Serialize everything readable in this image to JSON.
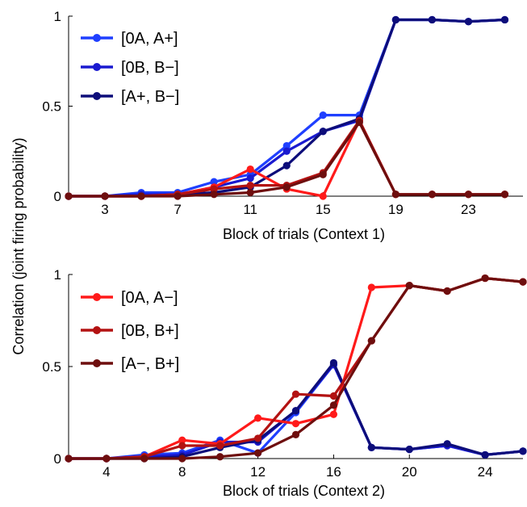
{
  "ylabel": "Correlation (joint firing probability)",
  "colors": {
    "bright_blue": "#1f3fff",
    "mid_blue": "#1a1ad0",
    "dark_blue": "#0d0d7a",
    "bright_red": "#ff1a1a",
    "mid_red": "#b31212",
    "dark_red": "#6e0e0e"
  },
  "chart_data": [
    {
      "type": "line",
      "xlabel": "Block of trials (Context 1)",
      "xticks": [
        3,
        7,
        11,
        15,
        19,
        23
      ],
      "yticks": [
        0,
        0.5,
        1
      ],
      "ytick_labels": [
        "0",
        "0.5",
        "1"
      ],
      "xlim": [
        1,
        26
      ],
      "ylim": [
        0,
        1
      ],
      "legend_position": "top-left",
      "legend": [
        "[0A, A+]",
        "[0B, B−]",
        "[A+, B−]"
      ],
      "series": [
        {
          "name": "[0A, A+]",
          "color": "#1f3fff",
          "x": [
            1,
            3,
            5,
            7,
            9,
            11,
            13,
            15,
            17,
            19,
            21,
            23,
            25
          ],
          "y": [
            0,
            0,
            0.02,
            0.02,
            0.08,
            0.12,
            0.28,
            0.45,
            0.45,
            0.98,
            0.98,
            0.97,
            0.98
          ]
        },
        {
          "name": "[0B, B−]",
          "color": "#1a1ad0",
          "x": [
            1,
            3,
            5,
            7,
            9,
            11,
            13,
            15,
            17,
            19,
            21,
            23,
            25
          ],
          "y": [
            0,
            0,
            0.01,
            0.01,
            0.05,
            0.1,
            0.25,
            0.36,
            0.42,
            0.98,
            0.98,
            0.97,
            0.98
          ]
        },
        {
          "name": "[A+, B−]",
          "color": "#0d0d7a",
          "x": [
            1,
            3,
            5,
            7,
            9,
            11,
            13,
            15,
            17,
            19,
            21,
            23,
            25
          ],
          "y": [
            0,
            0,
            0,
            0.01,
            0.02,
            0.05,
            0.17,
            0.36,
            0.43,
            0.98,
            0.98,
            0.97,
            0.98
          ]
        },
        {
          "color": "#ff1a1a",
          "x": [
            1,
            3,
            5,
            7,
            9,
            11,
            13,
            15,
            17,
            19,
            21,
            23,
            25
          ],
          "y": [
            0,
            0,
            0,
            0.01,
            0.05,
            0.15,
            0.04,
            0.0,
            0.42,
            0.01,
            0.01,
            0.01,
            0.01
          ]
        },
        {
          "color": "#b31212",
          "x": [
            1,
            3,
            5,
            7,
            9,
            11,
            13,
            15,
            17,
            19,
            21,
            23,
            25
          ],
          "y": [
            0,
            0,
            0,
            0.01,
            0.04,
            0.06,
            0.06,
            0.13,
            0.42,
            0.01,
            0.01,
            0.01,
            0.01
          ]
        },
        {
          "color": "#6e0e0e",
          "x": [
            1,
            3,
            5,
            7,
            9,
            11,
            13,
            15,
            17,
            19,
            21,
            23,
            25
          ],
          "y": [
            0,
            0,
            0,
            0,
            0.01,
            0.02,
            0.05,
            0.12,
            0.41,
            0.01,
            0.01,
            0.01,
            0.01
          ]
        }
      ]
    },
    {
      "type": "line",
      "xlabel": "Block of trials (Context 2)",
      "xticks": [
        4,
        8,
        12,
        16,
        20,
        24
      ],
      "yticks": [
        0,
        0.5,
        1
      ],
      "ytick_labels": [
        "0",
        "0.5",
        "1"
      ],
      "xlim": [
        2,
        26
      ],
      "ylim": [
        0,
        1
      ],
      "legend_position": "top-left",
      "legend": [
        "[0A, A−]",
        "[0B, B+]",
        "[A−, B+]"
      ],
      "series": [
        {
          "color": "#1f3fff",
          "x": [
            2,
            4,
            6,
            8,
            10,
            12,
            14,
            16,
            18,
            20,
            22,
            24,
            26
          ],
          "y": [
            0,
            0,
            0.02,
            0.03,
            0.1,
            0.03,
            0.25,
            0.51,
            0.06,
            0.05,
            0.07,
            0.02,
            0.04
          ]
        },
        {
          "color": "#1a1ad0",
          "x": [
            2,
            4,
            6,
            8,
            10,
            12,
            14,
            16,
            18,
            20,
            22,
            24,
            26
          ],
          "y": [
            0,
            0,
            0.01,
            0.02,
            0.09,
            0.09,
            0.26,
            0.51,
            0.06,
            0.05,
            0.07,
            0.02,
            0.04
          ]
        },
        {
          "color": "#0d0d7a",
          "x": [
            2,
            4,
            6,
            8,
            10,
            12,
            14,
            16,
            18,
            20,
            22,
            24,
            26
          ],
          "y": [
            0,
            0,
            0,
            0.01,
            0.06,
            0.1,
            0.26,
            0.52,
            0.06,
            0.05,
            0.08,
            0.02,
            0.04
          ]
        },
        {
          "name": "[0A, A−]",
          "color": "#ff1a1a",
          "x": [
            2,
            4,
            6,
            8,
            10,
            12,
            14,
            16,
            18,
            20,
            22,
            24,
            26
          ],
          "y": [
            0,
            0,
            0.01,
            0.1,
            0.08,
            0.22,
            0.19,
            0.24,
            0.93,
            0.94,
            0.91,
            0.98,
            0.96
          ]
        },
        {
          "name": "[0B, B+]",
          "color": "#b31212",
          "x": [
            2,
            4,
            6,
            8,
            10,
            12,
            14,
            16,
            18,
            20,
            22,
            24,
            26
          ],
          "y": [
            0,
            0,
            0.01,
            0.07,
            0.07,
            0.11,
            0.35,
            0.34,
            0.64,
            0.94,
            0.91,
            0.98,
            0.96
          ]
        },
        {
          "name": "[A−, B+]",
          "color": "#6e0e0e",
          "x": [
            2,
            4,
            6,
            8,
            10,
            12,
            14,
            16,
            18,
            20,
            22,
            24,
            26
          ],
          "y": [
            0,
            0,
            0,
            0,
            0.01,
            0.03,
            0.13,
            0.29,
            0.64,
            0.94,
            0.91,
            0.98,
            0.96
          ]
        }
      ]
    }
  ]
}
